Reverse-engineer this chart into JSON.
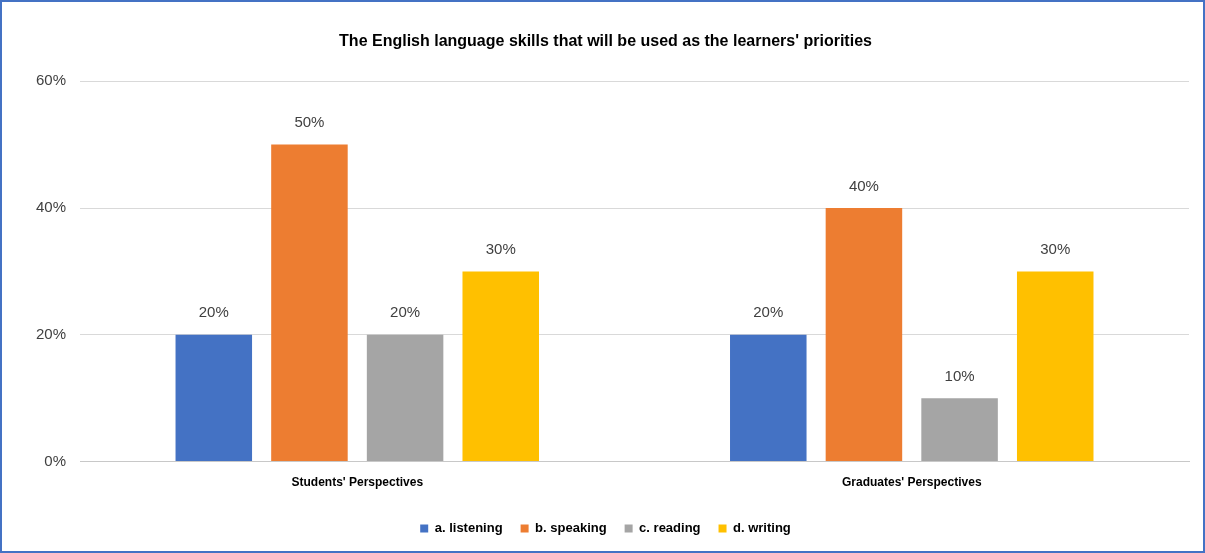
{
  "chart_data": {
    "type": "bar",
    "title": "The English language skills that will be used as the learners' priorities",
    "categories": [
      "Students' Perspectives",
      "Graduates' Perspectives"
    ],
    "series": [
      {
        "name": "a. listening",
        "color": "#4472c4",
        "values": [
          20,
          20
        ],
        "value_labels": [
          "20%",
          "20%"
        ]
      },
      {
        "name": "b. speaking",
        "color": "#ed7d31",
        "values": [
          50,
          40
        ],
        "value_labels": [
          "50%",
          "40%"
        ]
      },
      {
        "name": "c. reading",
        "color": "#a5a5a5",
        "values": [
          20,
          10
        ],
        "value_labels": [
          "20%",
          "10%"
        ]
      },
      {
        "name": "d. writing",
        "color": "#ffc000",
        "values": [
          30,
          30
        ],
        "value_labels": [
          "30%",
          "30%"
        ]
      }
    ],
    "ylim": [
      0,
      60
    ],
    "yticks": [
      {
        "value": 0,
        "label": "0%"
      },
      {
        "value": 20,
        "label": "20%"
      },
      {
        "value": 40,
        "label": "40%"
      },
      {
        "value": 60,
        "label": "60%"
      }
    ],
    "grid": "y",
    "legend": "bottom"
  }
}
